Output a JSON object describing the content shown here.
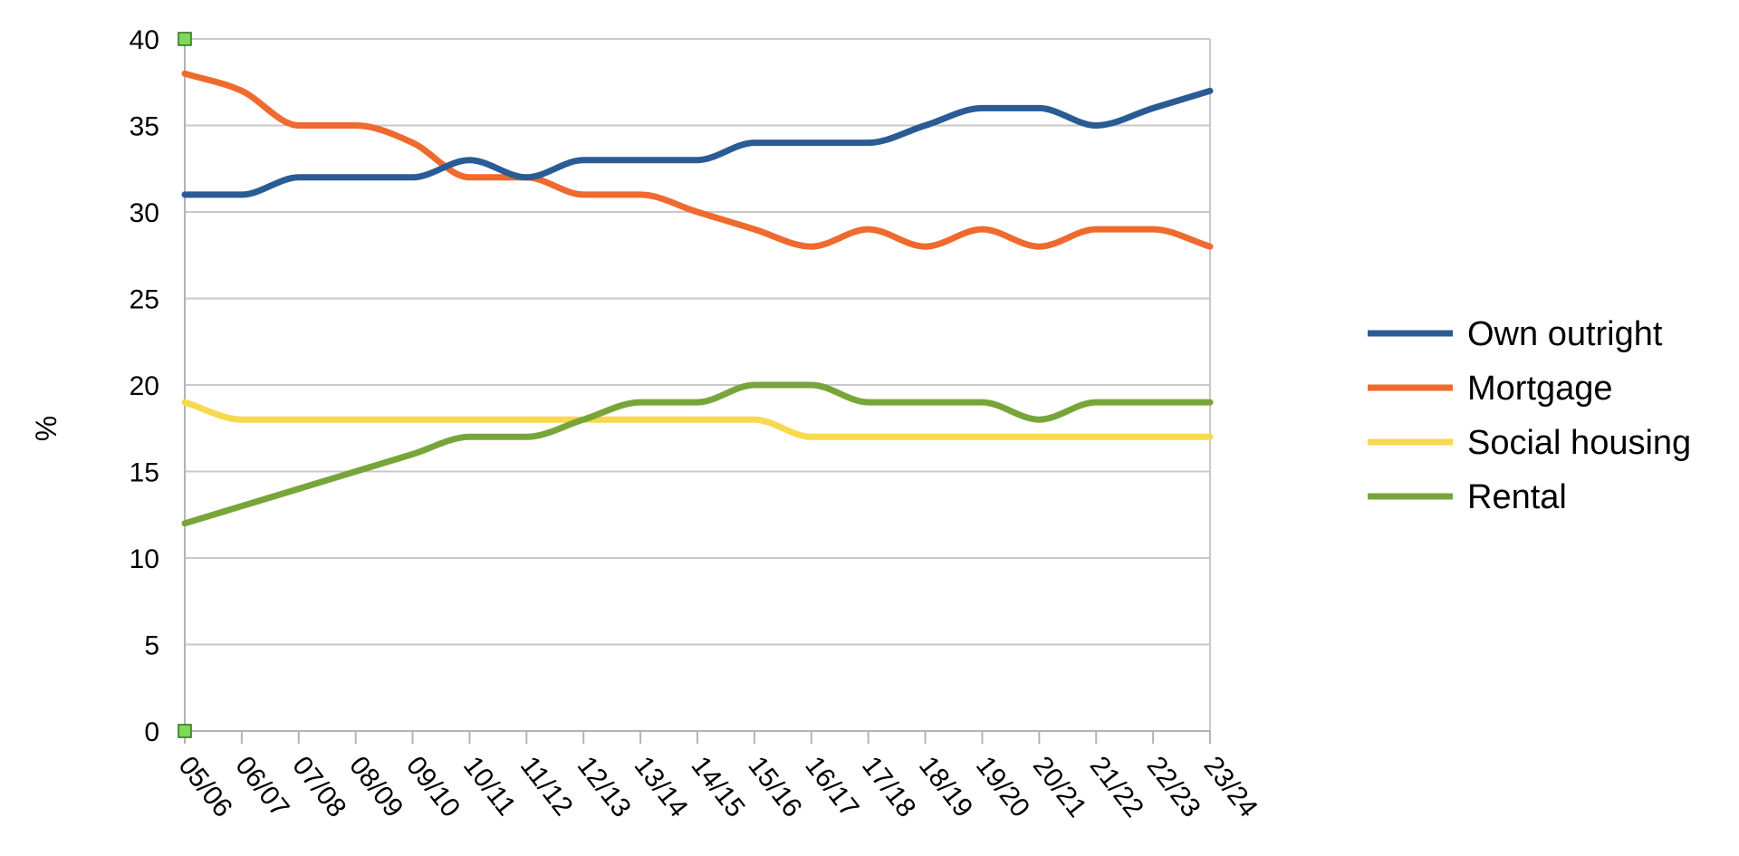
{
  "chart_data": {
    "type": "line",
    "title": "",
    "xlabel": "",
    "ylabel": "%",
    "ylim": [
      0,
      40
    ],
    "yticks": [
      0,
      5,
      10,
      15,
      20,
      25,
      30,
      35,
      40
    ],
    "grid": true,
    "legend_position": "right",
    "categories": [
      "05/06",
      "06/07",
      "07/08",
      "08/09",
      "09/10",
      "10/11",
      "11/12",
      "12/13",
      "13/14",
      "14/15",
      "15/16",
      "16/17",
      "17/18",
      "18/19",
      "19/20",
      "20/21",
      "21/22",
      "22/23",
      "23/24"
    ],
    "series": [
      {
        "name": "Own outright",
        "color": "#2a5b95",
        "values": [
          31,
          31,
          32,
          32,
          32,
          33,
          32,
          33,
          33,
          33,
          34,
          34,
          34,
          35,
          36,
          36,
          35,
          36,
          37
        ]
      },
      {
        "name": "Mortgage",
        "color": "#ee6a2f",
        "values": [
          38,
          37,
          35,
          35,
          34,
          32,
          32,
          31,
          31,
          30,
          29,
          28,
          29,
          28,
          29,
          28,
          29,
          29,
          28
        ]
      },
      {
        "name": "Social housing",
        "color": "#f8d84f",
        "values": [
          19,
          18,
          18,
          18,
          18,
          18,
          18,
          18,
          18,
          18,
          18,
          17,
          17,
          17,
          17,
          17,
          17,
          17,
          17
        ]
      },
      {
        "name": "Rental",
        "color": "#78a53a",
        "values": [
          12,
          13,
          14,
          15,
          16,
          17,
          17,
          18,
          19,
          19,
          20,
          20,
          19,
          19,
          19,
          18,
          19,
          19,
          19
        ]
      }
    ]
  }
}
